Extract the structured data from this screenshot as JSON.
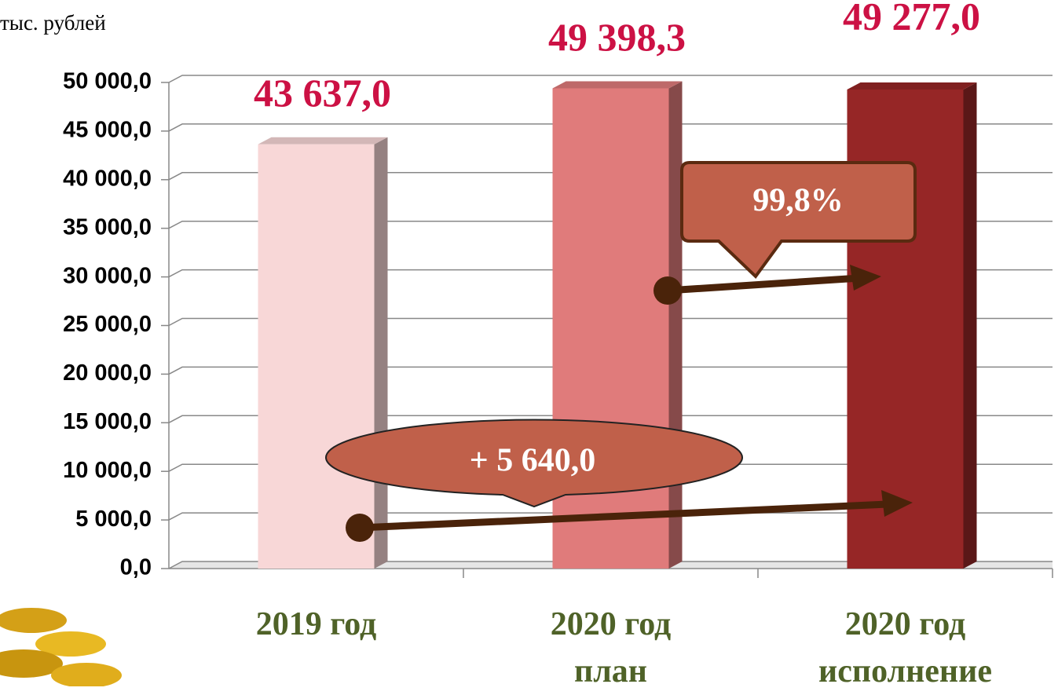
{
  "chart_data": {
    "type": "bar",
    "unit_label": "тыс. рублей",
    "categories": [
      "2019 год",
      "2020 год\nплан",
      "2020 год\nисполнение"
    ],
    "values": [
      43637.0,
      49398.3,
      49277.0
    ],
    "value_labels": [
      "43 637,0",
      "49 398,3",
      "49 277,0"
    ],
    "colors": [
      "#f8d7d7",
      "#e07b7b",
      "#962626"
    ],
    "ylim": [
      0,
      50000
    ],
    "yticks": [
      {
        "value": 0,
        "label": "0,0"
      },
      {
        "value": 5000,
        "label": "5 000,0"
      },
      {
        "value": 10000,
        "label": "10 000,0"
      },
      {
        "value": 15000,
        "label": "15 000,0"
      },
      {
        "value": 20000,
        "label": "20 000,0"
      },
      {
        "value": 25000,
        "label": "25 000,0"
      },
      {
        "value": 30000,
        "label": "30 000,0"
      },
      {
        "value": 35000,
        "label": "35 000,0"
      },
      {
        "value": 40000,
        "label": "40 000,0"
      },
      {
        "value": 45000,
        "label": "45 000,0"
      },
      {
        "value": 50000,
        "label": "50 000,0"
      }
    ],
    "grid": true,
    "annotations": [
      "99,8%",
      "+ 5 640,0"
    ]
  }
}
